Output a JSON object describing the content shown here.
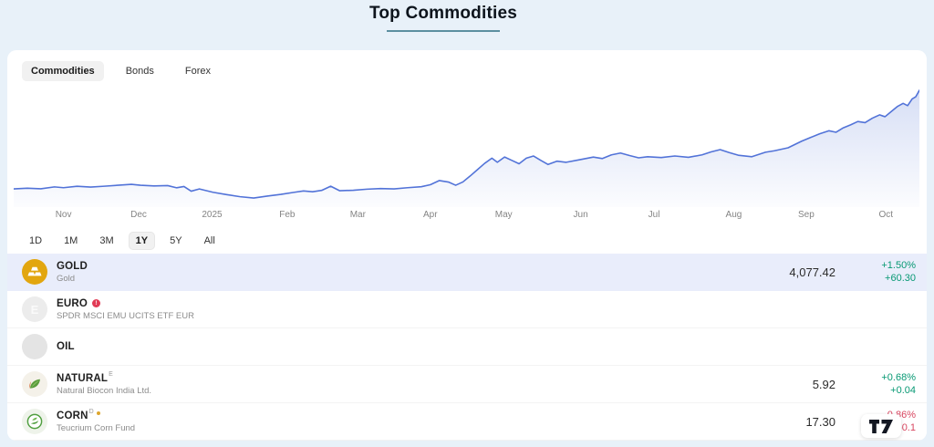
{
  "page": {
    "title": "Top Commodities"
  },
  "tabs": [
    {
      "label": "Commodities",
      "active": true
    },
    {
      "label": "Bonds",
      "active": false
    },
    {
      "label": "Forex",
      "active": false
    }
  ],
  "range_buttons": [
    {
      "label": "1D",
      "active": false
    },
    {
      "label": "1M",
      "active": false
    },
    {
      "label": "3M",
      "active": false
    },
    {
      "label": "1Y",
      "active": true
    },
    {
      "label": "5Y",
      "active": false
    },
    {
      "label": "All",
      "active": false
    }
  ],
  "chart_data": {
    "type": "area",
    "series_name": "GOLD",
    "range": "1Y",
    "ylim": [
      2500,
      4150
    ],
    "line_color": "#5273d8",
    "grid": false,
    "x_axis_labels": [
      {
        "label": "Nov",
        "x_pct": 5.5
      },
      {
        "label": "Dec",
        "x_pct": 13.8
      },
      {
        "label": "2025",
        "x_pct": 21.9
      },
      {
        "label": "Feb",
        "x_pct": 30.2
      },
      {
        "label": "Mar",
        "x_pct": 38.0
      },
      {
        "label": "Apr",
        "x_pct": 46.0
      },
      {
        "label": "May",
        "x_pct": 54.1
      },
      {
        "label": "Jun",
        "x_pct": 62.6
      },
      {
        "label": "Jul",
        "x_pct": 70.7
      },
      {
        "label": "Aug",
        "x_pct": 79.5
      },
      {
        "label": "Sep",
        "x_pct": 87.5
      },
      {
        "label": "Oct",
        "x_pct": 96.3
      }
    ],
    "points": [
      [
        0,
        2745
      ],
      [
        1.5,
        2755
      ],
      [
        3,
        2748
      ],
      [
        4.5,
        2772
      ],
      [
        5.5,
        2762
      ],
      [
        7,
        2780
      ],
      [
        8.5,
        2770
      ],
      [
        10,
        2782
      ],
      [
        11.5,
        2795
      ],
      [
        13,
        2808
      ],
      [
        14,
        2795
      ],
      [
        15.5,
        2785
      ],
      [
        17,
        2790
      ],
      [
        18,
        2760
      ],
      [
        18.8,
        2778
      ],
      [
        19.6,
        2715
      ],
      [
        20.5,
        2745
      ],
      [
        22,
        2700
      ],
      [
        23.5,
        2668
      ],
      [
        25,
        2640
      ],
      [
        26.5,
        2622
      ],
      [
        28,
        2648
      ],
      [
        29.5,
        2672
      ],
      [
        31,
        2700
      ],
      [
        32,
        2718
      ],
      [
        33,
        2708
      ],
      [
        34,
        2725
      ],
      [
        35,
        2782
      ],
      [
        36,
        2720
      ],
      [
        37.5,
        2728
      ],
      [
        39,
        2742
      ],
      [
        40.5,
        2750
      ],
      [
        42,
        2745
      ],
      [
        43.5,
        2762
      ],
      [
        45,
        2775
      ],
      [
        46,
        2802
      ],
      [
        47,
        2858
      ],
      [
        48,
        2838
      ],
      [
        48.8,
        2795
      ],
      [
        49.6,
        2840
      ],
      [
        50.4,
        2920
      ],
      [
        51.2,
        3005
      ],
      [
        52,
        3090
      ],
      [
        52.8,
        3160
      ],
      [
        53.4,
        3105
      ],
      [
        54.2,
        3175
      ],
      [
        55,
        3130
      ],
      [
        55.8,
        3085
      ],
      [
        56.6,
        3160
      ],
      [
        57.4,
        3190
      ],
      [
        58.2,
        3130
      ],
      [
        59,
        3075
      ],
      [
        60,
        3120
      ],
      [
        61,
        3105
      ],
      [
        62.5,
        3140
      ],
      [
        64,
        3175
      ],
      [
        65,
        3155
      ],
      [
        66,
        3205
      ],
      [
        67,
        3230
      ],
      [
        68,
        3195
      ],
      [
        69,
        3165
      ],
      [
        70,
        3180
      ],
      [
        71.5,
        3168
      ],
      [
        73,
        3190
      ],
      [
        74.5,
        3172
      ],
      [
        76,
        3205
      ],
      [
        77,
        3245
      ],
      [
        78,
        3275
      ],
      [
        79,
        3235
      ],
      [
        80,
        3200
      ],
      [
        81.5,
        3180
      ],
      [
        83,
        3240
      ],
      [
        84,
        3260
      ],
      [
        85.5,
        3300
      ],
      [
        87,
        3390
      ],
      [
        88,
        3440
      ],
      [
        89,
        3490
      ],
      [
        90,
        3530
      ],
      [
        90.8,
        3510
      ],
      [
        91.6,
        3570
      ],
      [
        92.4,
        3610
      ],
      [
        93.2,
        3655
      ],
      [
        94,
        3640
      ],
      [
        94.8,
        3700
      ],
      [
        95.6,
        3745
      ],
      [
        96.2,
        3720
      ],
      [
        97,
        3800
      ],
      [
        97.6,
        3860
      ],
      [
        98.2,
        3900
      ],
      [
        98.7,
        3870
      ],
      [
        99.2,
        3960
      ],
      [
        99.6,
        3990
      ],
      [
        100,
        4077
      ]
    ]
  },
  "watchlist": [
    {
      "symbol": "GOLD",
      "name": "Gold",
      "icon": "gold-bars-icon",
      "selected": true,
      "price": "4,077.42",
      "change_pct": "+1.50%",
      "change_abs": "+60.30",
      "direction": "up"
    },
    {
      "symbol": "EURO",
      "name": "SPDR MSCI EMU UCITS ETF EUR",
      "icon": "euro-letter-icon",
      "has_info": true,
      "price": "",
      "change_pct": "",
      "change_abs": "",
      "direction": ""
    },
    {
      "symbol": "OIL",
      "name": "",
      "icon": "oil-blank-icon",
      "price": "",
      "change_pct": "",
      "change_abs": "",
      "direction": ""
    },
    {
      "symbol": "NATURAL",
      "flag": "E",
      "name": "Natural Biocon India Ltd.",
      "icon": "natural-leaf-icon",
      "price": "5.92",
      "change_pct": "+0.68%",
      "change_abs": "+0.04",
      "direction": "up"
    },
    {
      "symbol": "CORN",
      "flag": "D",
      "flag_dot": true,
      "name": "Teucrium Corn Fund",
      "icon": "corn-plant-icon",
      "price": "17.30",
      "change_pct": "-0.86%",
      "change_abs": "-0.1",
      "direction": "down"
    }
  ],
  "colors": {
    "page_bg": "#e8f1f9",
    "up": "#089974",
    "down": "#d8455f",
    "line": "#5273d8",
    "selected_row_bg": "#e9edfb",
    "title_underline": "#5c8fa0",
    "gold_icon": "#e2a60f"
  },
  "branding": {
    "logo": "tradingview-logo"
  }
}
